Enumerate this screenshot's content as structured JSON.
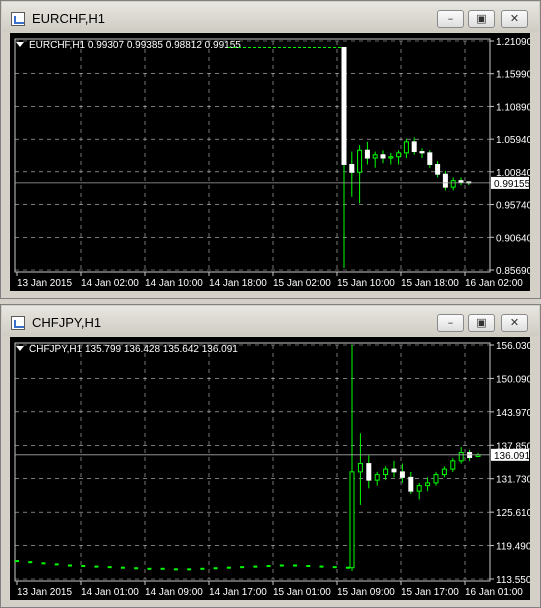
{
  "colors": {
    "background": "#000000",
    "grid": "#c8c8c8",
    "bull": "#00ff00",
    "text": "#ffffff",
    "hline": "#aaaaaa"
  },
  "windows": [
    {
      "title": "EURCHF,H1",
      "info": "EURCHF,H1  0.99307 0.99385 0.98812 0.99155",
      "icon": "chart-window-icon",
      "controls": {
        "minimize": "minimize-icon",
        "maximize": "maximize-icon",
        "close": "close-icon"
      },
      "chart_data": {
        "type": "candlestick",
        "symbol": "EURCHF",
        "timeframe": "H1",
        "ohlc_last": {
          "open": 0.99307,
          "high": 0.99385,
          "low": 0.98812,
          "close": 0.99155
        },
        "current_price": "0.99155",
        "y_ticks": [
          "1.21090",
          "1.15990",
          "1.10890",
          "1.05940",
          "1.00840",
          "0.95740",
          "0.90640",
          "0.85690"
        ],
        "x_ticks": [
          "13 Jan 2015",
          "14 Jan 02:00",
          "14 Jan 10:00",
          "14 Jan 18:00",
          "15 Jan 02:00",
          "15 Jan 10:00",
          "15 Jan 18:00",
          "16 Jan 02:00"
        ],
        "ylim": [
          0.8569,
          1.2109
        ],
        "grid": true,
        "flat_level": 1.2009,
        "candles": [
          {
            "o": 1.2009,
            "h": 1.2009,
            "l": 0.86,
            "c": 1.02
          },
          {
            "o": 1.02,
            "h": 1.04,
            "l": 0.97,
            "c": 1.008
          },
          {
            "o": 1.008,
            "h": 1.05,
            "l": 0.96,
            "c": 1.042
          },
          {
            "o": 1.042,
            "h": 1.055,
            "l": 1.02,
            "c": 1.03
          },
          {
            "o": 1.03,
            "h": 1.04,
            "l": 1.015,
            "c": 1.035
          },
          {
            "o": 1.035,
            "h": 1.042,
            "l": 1.022,
            "c": 1.03
          },
          {
            "o": 1.03,
            "h": 1.038,
            "l": 1.02,
            "c": 1.032
          },
          {
            "o": 1.032,
            "h": 1.042,
            "l": 1.02,
            "c": 1.038
          },
          {
            "o": 1.038,
            "h": 1.06,
            "l": 1.03,
            "c": 1.055
          },
          {
            "o": 1.055,
            "h": 1.062,
            "l": 1.035,
            "c": 1.04
          },
          {
            "o": 1.04,
            "h": 1.045,
            "l": 1.03,
            "c": 1.038
          },
          {
            "o": 1.038,
            "h": 1.042,
            "l": 1.015,
            "c": 1.02
          },
          {
            "o": 1.02,
            "h": 1.025,
            "l": 1.0,
            "c": 1.005
          },
          {
            "o": 1.005,
            "h": 1.01,
            "l": 0.98,
            "c": 0.985
          },
          {
            "o": 0.985,
            "h": 1.0,
            "l": 0.98,
            "c": 0.995
          },
          {
            "o": 0.995,
            "h": 1.0,
            "l": 0.988,
            "c": 0.993
          },
          {
            "o": 0.99307,
            "h": 0.99385,
            "l": 0.98812,
            "c": 0.99155
          }
        ]
      }
    },
    {
      "title": "CHFJPY,H1",
      "info": "CHFJPY,H1  135.799 136.428 135.642 136.091",
      "icon": "chart-window-icon",
      "controls": {
        "minimize": "minimize-icon",
        "maximize": "maximize-icon",
        "close": "close-icon"
      },
      "chart_data": {
        "type": "candlestick",
        "symbol": "CHFJPY",
        "timeframe": "H1",
        "ohlc_last": {
          "open": 135.799,
          "high": 136.428,
          "low": 135.642,
          "close": 136.091
        },
        "current_price": "136.091",
        "y_ticks": [
          "156.030",
          "150.090",
          "143.970",
          "137.850",
          "131.730",
          "125.610",
          "119.490",
          "113.550"
        ],
        "x_ticks": [
          "13 Jan 2015",
          "14 Jan 01:00",
          "14 Jan 09:00",
          "14 Jan 17:00",
          "15 Jan 01:00",
          "15 Jan 09:00",
          "15 Jan 17:00",
          "16 Jan 01:00"
        ],
        "ylim": [
          113.55,
          156.03
        ],
        "grid": true,
        "pre_event_line": [
          116.8,
          116.6,
          116.4,
          116.2,
          116.0,
          115.9,
          115.8,
          115.7,
          115.6,
          115.5,
          115.4,
          115.4,
          115.3,
          115.3,
          115.4,
          115.5,
          115.6,
          115.7,
          115.8,
          115.9,
          116.0,
          116.0,
          115.9,
          115.8,
          115.7,
          115.6
        ],
        "candles": [
          {
            "o": 115.6,
            "h": 156.0,
            "l": 115.0,
            "c": 133.0
          },
          {
            "o": 133.0,
            "h": 140.0,
            "l": 127.0,
            "c": 134.5
          },
          {
            "o": 134.5,
            "h": 136.0,
            "l": 130.0,
            "c": 131.5
          },
          {
            "o": 131.5,
            "h": 133.0,
            "l": 130.5,
            "c": 132.5
          },
          {
            "o": 132.5,
            "h": 134.0,
            "l": 131.5,
            "c": 133.5
          },
          {
            "o": 133.5,
            "h": 135.0,
            "l": 132.0,
            "c": 133.0
          },
          {
            "o": 133.0,
            "h": 134.5,
            "l": 131.0,
            "c": 132.0
          },
          {
            "o": 132.0,
            "h": 133.0,
            "l": 129.0,
            "c": 129.5
          },
          {
            "o": 129.5,
            "h": 131.0,
            "l": 128.0,
            "c": 130.5
          },
          {
            "o": 130.5,
            "h": 132.0,
            "l": 129.5,
            "c": 131.0
          },
          {
            "o": 131.0,
            "h": 133.0,
            "l": 130.5,
            "c": 132.5
          },
          {
            "o": 132.5,
            "h": 134.0,
            "l": 132.0,
            "c": 133.5
          },
          {
            "o": 133.5,
            "h": 135.5,
            "l": 133.0,
            "c": 135.0
          },
          {
            "o": 135.0,
            "h": 137.5,
            "l": 134.5,
            "c": 136.5
          },
          {
            "o": 136.5,
            "h": 137.0,
            "l": 135.0,
            "c": 135.6
          },
          {
            "o": 135.799,
            "h": 136.428,
            "l": 135.642,
            "c": 136.091
          }
        ]
      }
    }
  ]
}
